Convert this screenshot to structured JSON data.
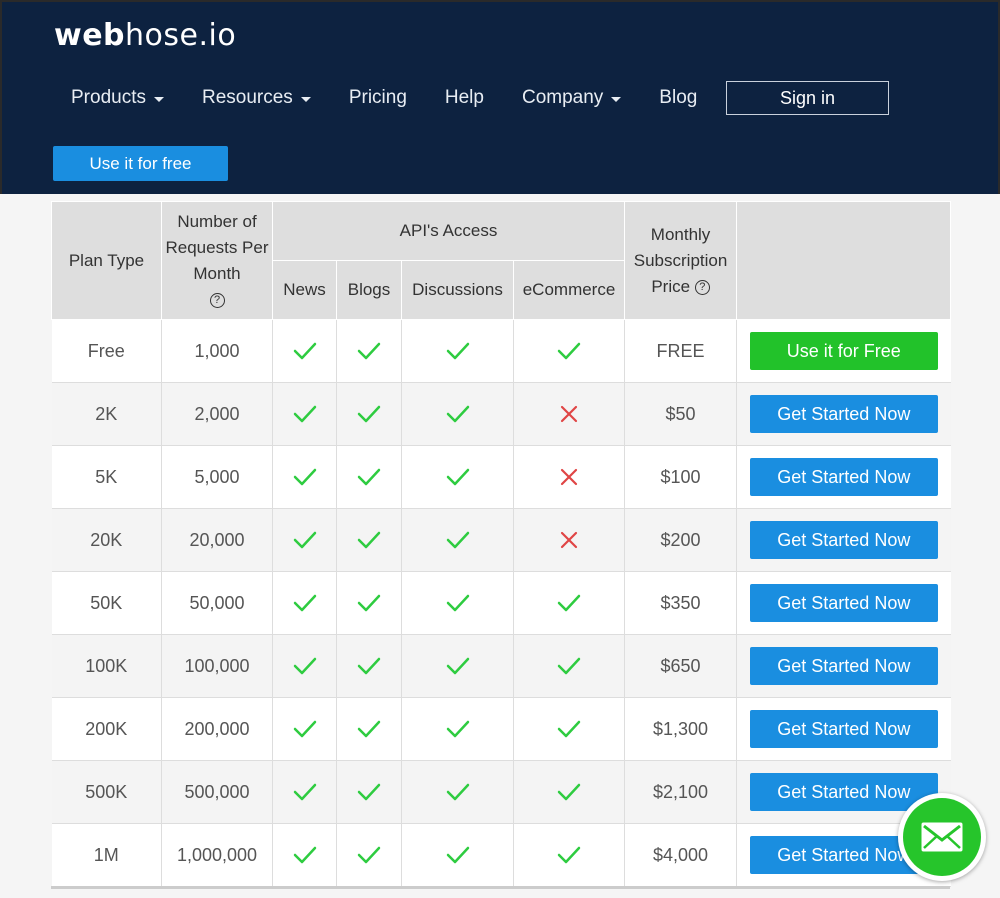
{
  "brand": {
    "logo_bold": "web",
    "logo_rest": "hose.io"
  },
  "nav": {
    "items": [
      {
        "label": "Products",
        "dropdown": true
      },
      {
        "label": "Resources",
        "dropdown": true
      },
      {
        "label": "Pricing",
        "dropdown": false
      },
      {
        "label": "Help",
        "dropdown": false
      },
      {
        "label": "Company",
        "dropdown": true
      },
      {
        "label": "Blog",
        "dropdown": false
      }
    ],
    "signin_label": "Sign in",
    "cta_label": "Use it for free"
  },
  "table": {
    "headers": {
      "plan_type": "Plan Type",
      "requests": "Number of Requests Per Month",
      "api_access": "API's Access",
      "news": "News",
      "blogs": "Blogs",
      "discussions": "Discussions",
      "ecommerce": "eCommerce",
      "price": "Monthly Subscription Price",
      "help_glyph": "?"
    },
    "rows": [
      {
        "plan": "Free",
        "requests": "1,000",
        "news": true,
        "blogs": true,
        "discussions": true,
        "ecommerce": true,
        "price": "FREE",
        "button": "Use it for Free",
        "button_color": "#22c22a"
      },
      {
        "plan": "2K",
        "requests": "2,000",
        "news": true,
        "blogs": true,
        "discussions": true,
        "ecommerce": false,
        "price": "$50",
        "button": "Get Started Now",
        "button_color": "#1a8ee0"
      },
      {
        "plan": "5K",
        "requests": "5,000",
        "news": true,
        "blogs": true,
        "discussions": true,
        "ecommerce": false,
        "price": "$100",
        "button": "Get Started Now",
        "button_color": "#1a8ee0"
      },
      {
        "plan": "20K",
        "requests": "20,000",
        "news": true,
        "blogs": true,
        "discussions": true,
        "ecommerce": false,
        "price": "$200",
        "button": "Get Started Now",
        "button_color": "#1a8ee0"
      },
      {
        "plan": "50K",
        "requests": "50,000",
        "news": true,
        "blogs": true,
        "discussions": true,
        "ecommerce": true,
        "price": "$350",
        "button": "Get Started Now",
        "button_color": "#1a8ee0"
      },
      {
        "plan": "100K",
        "requests": "100,000",
        "news": true,
        "blogs": true,
        "discussions": true,
        "ecommerce": true,
        "price": "$650",
        "button": "Get Started Now",
        "button_color": "#1a8ee0"
      },
      {
        "plan": "200K",
        "requests": "200,000",
        "news": true,
        "blogs": true,
        "discussions": true,
        "ecommerce": true,
        "price": "$1,300",
        "button": "Get Started Now",
        "button_color": "#1a8ee0"
      },
      {
        "plan": "500K",
        "requests": "500,000",
        "news": true,
        "blogs": true,
        "discussions": true,
        "ecommerce": true,
        "price": "$2,100",
        "button": "Get Started Now",
        "button_color": "#1a8ee0"
      },
      {
        "plan": "1M",
        "requests": "1,000,000",
        "news": true,
        "blogs": true,
        "discussions": true,
        "ecommerce": true,
        "price": "$4,000",
        "button": "Get Started Now",
        "button_color": "#1a8ee0"
      }
    ]
  },
  "colors": {
    "header_bg": "#0d2240",
    "accent_blue": "#1a8ee0",
    "accent_green": "#22c22a",
    "check": "#2ecc40",
    "cross": "#e04545"
  },
  "icons": {
    "check": "check-icon",
    "cross": "cross-icon",
    "help": "help-circle-icon",
    "mail": "envelope-icon",
    "dropdown": "caret-down-icon"
  }
}
